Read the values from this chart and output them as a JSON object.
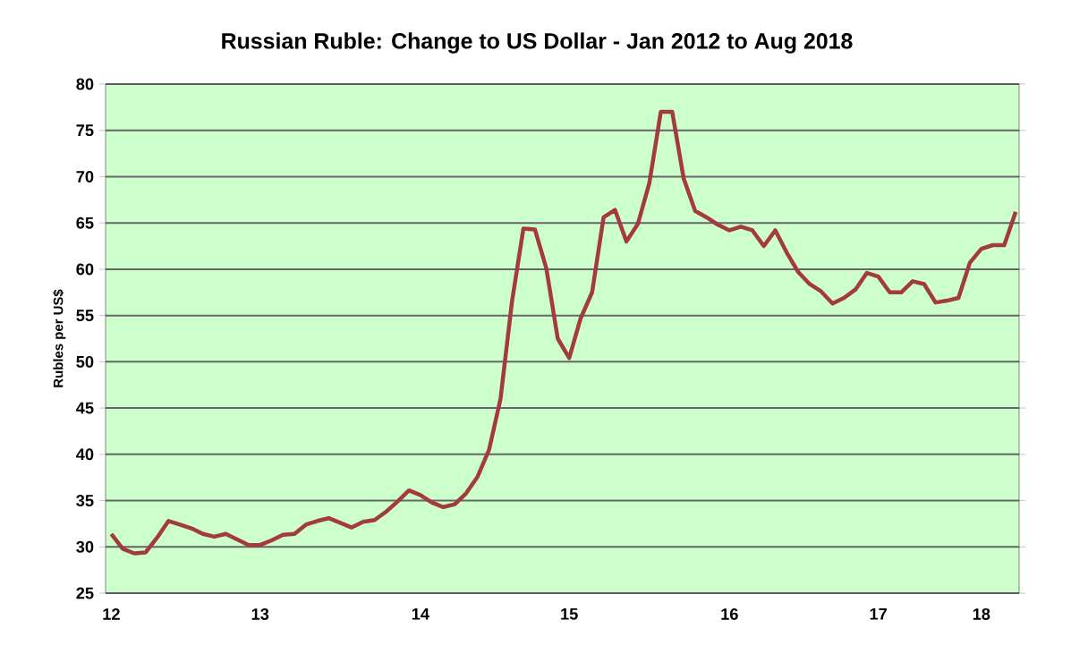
{
  "chart_data": {
    "type": "line",
    "title": "Russian Ruble: Change to US Dollar - Jan 2012 to Aug 2018",
    "ylabel": "Rubles per US$",
    "categories": [
      "12",
      null,
      null,
      null,
      null,
      null,
      null,
      null,
      null,
      null,
      null,
      null,
      null,
      "13",
      null,
      null,
      null,
      null,
      null,
      null,
      null,
      null,
      null,
      null,
      null,
      null,
      null,
      "14",
      null,
      null,
      null,
      null,
      null,
      null,
      null,
      null,
      null,
      null,
      null,
      null,
      "15",
      null,
      null,
      null,
      null,
      null,
      null,
      null,
      null,
      null,
      null,
      null,
      null,
      null,
      "16",
      null,
      null,
      null,
      null,
      null,
      null,
      null,
      null,
      null,
      null,
      null,
      null,
      "17",
      null,
      null,
      null,
      null,
      null,
      null,
      null,
      null,
      "18",
      null,
      null,
      null
    ],
    "series": [
      {
        "color": "#a33b3b",
        "values": [
          31.4,
          29.8,
          29.3,
          29.4,
          31.0,
          32.8,
          32.4,
          32.0,
          31.4,
          31.1,
          31.4,
          30.8,
          30.2,
          30.2,
          30.7,
          31.3,
          31.4,
          32.4,
          32.8,
          33.1,
          32.6,
          32.1,
          32.7,
          32.9,
          33.8,
          34.9,
          36.1,
          35.6,
          34.8,
          34.3,
          34.6,
          35.8,
          37.6,
          40.5,
          46.0,
          56.5,
          64.4,
          64.3,
          60.1,
          52.5,
          50.4,
          54.7,
          57.5,
          65.6,
          66.4,
          63.0,
          64.9,
          69.3,
          77.0,
          77.0,
          69.8,
          66.3,
          65.6,
          64.8,
          64.2,
          64.6,
          64.2,
          62.5,
          64.2,
          61.8,
          59.7,
          58.4,
          57.6,
          56.3,
          56.9,
          57.8,
          59.6,
          59.2,
          57.5,
          57.5,
          58.7,
          58.4,
          56.4,
          56.6,
          56.9,
          60.7,
          62.2,
          62.6,
          62.6,
          66.2
        ]
      }
    ],
    "ylim": [
      25,
      80
    ],
    "yticks": [
      25,
      30,
      35,
      40,
      45,
      50,
      55,
      60,
      65,
      70,
      75,
      80
    ],
    "grid": "y",
    "marker": "none",
    "line_style": "solid"
  }
}
